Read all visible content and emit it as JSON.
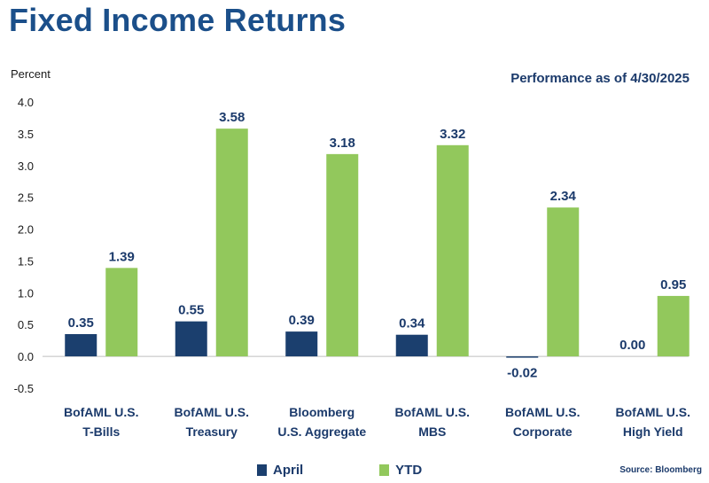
{
  "header": {
    "title": "Fixed Income Returns",
    "subtitle": "Performance as of 4/30/2025"
  },
  "footer": {
    "source": "Source: Bloomberg"
  },
  "colors": {
    "april": "#1b3f6e",
    "ytd": "#92c85c",
    "text": "#1b3a6b"
  },
  "chart_data": {
    "type": "bar",
    "title": "Fixed Income Returns",
    "ylabel": "Percent",
    "ylim": [
      -0.5,
      4.0
    ],
    "yticks": [
      "4.0",
      "3.5",
      "3.0",
      "2.5",
      "2.0",
      "1.5",
      "1.0",
      "0.5",
      "0.0",
      "-0.5"
    ],
    "ytick_values": [
      4.0,
      3.5,
      3.0,
      2.5,
      2.0,
      1.5,
      1.0,
      0.5,
      0.0,
      -0.5
    ],
    "grid": false,
    "legend": "bottom",
    "categories": [
      [
        "BofAML U.S.",
        "T-Bills"
      ],
      [
        "BofAML U.S.",
        "Treasury"
      ],
      [
        "Bloomberg",
        "U.S. Aggregate"
      ],
      [
        "BofAML U.S.",
        "MBS"
      ],
      [
        "BofAML U.S.",
        "Corporate"
      ],
      [
        "BofAML U.S.",
        "High Yield"
      ]
    ],
    "series": [
      {
        "name": "April",
        "values": [
          0.35,
          0.55,
          0.39,
          0.34,
          -0.02,
          0.0
        ],
        "labels": [
          "0.35",
          "0.55",
          "0.39",
          "0.34",
          "-0.02",
          "0.00"
        ]
      },
      {
        "name": "YTD",
        "values": [
          1.39,
          3.58,
          3.18,
          3.32,
          2.34,
          0.95
        ],
        "labels": [
          "1.39",
          "3.58",
          "3.18",
          "3.32",
          "2.34",
          "0.95"
        ]
      }
    ]
  }
}
